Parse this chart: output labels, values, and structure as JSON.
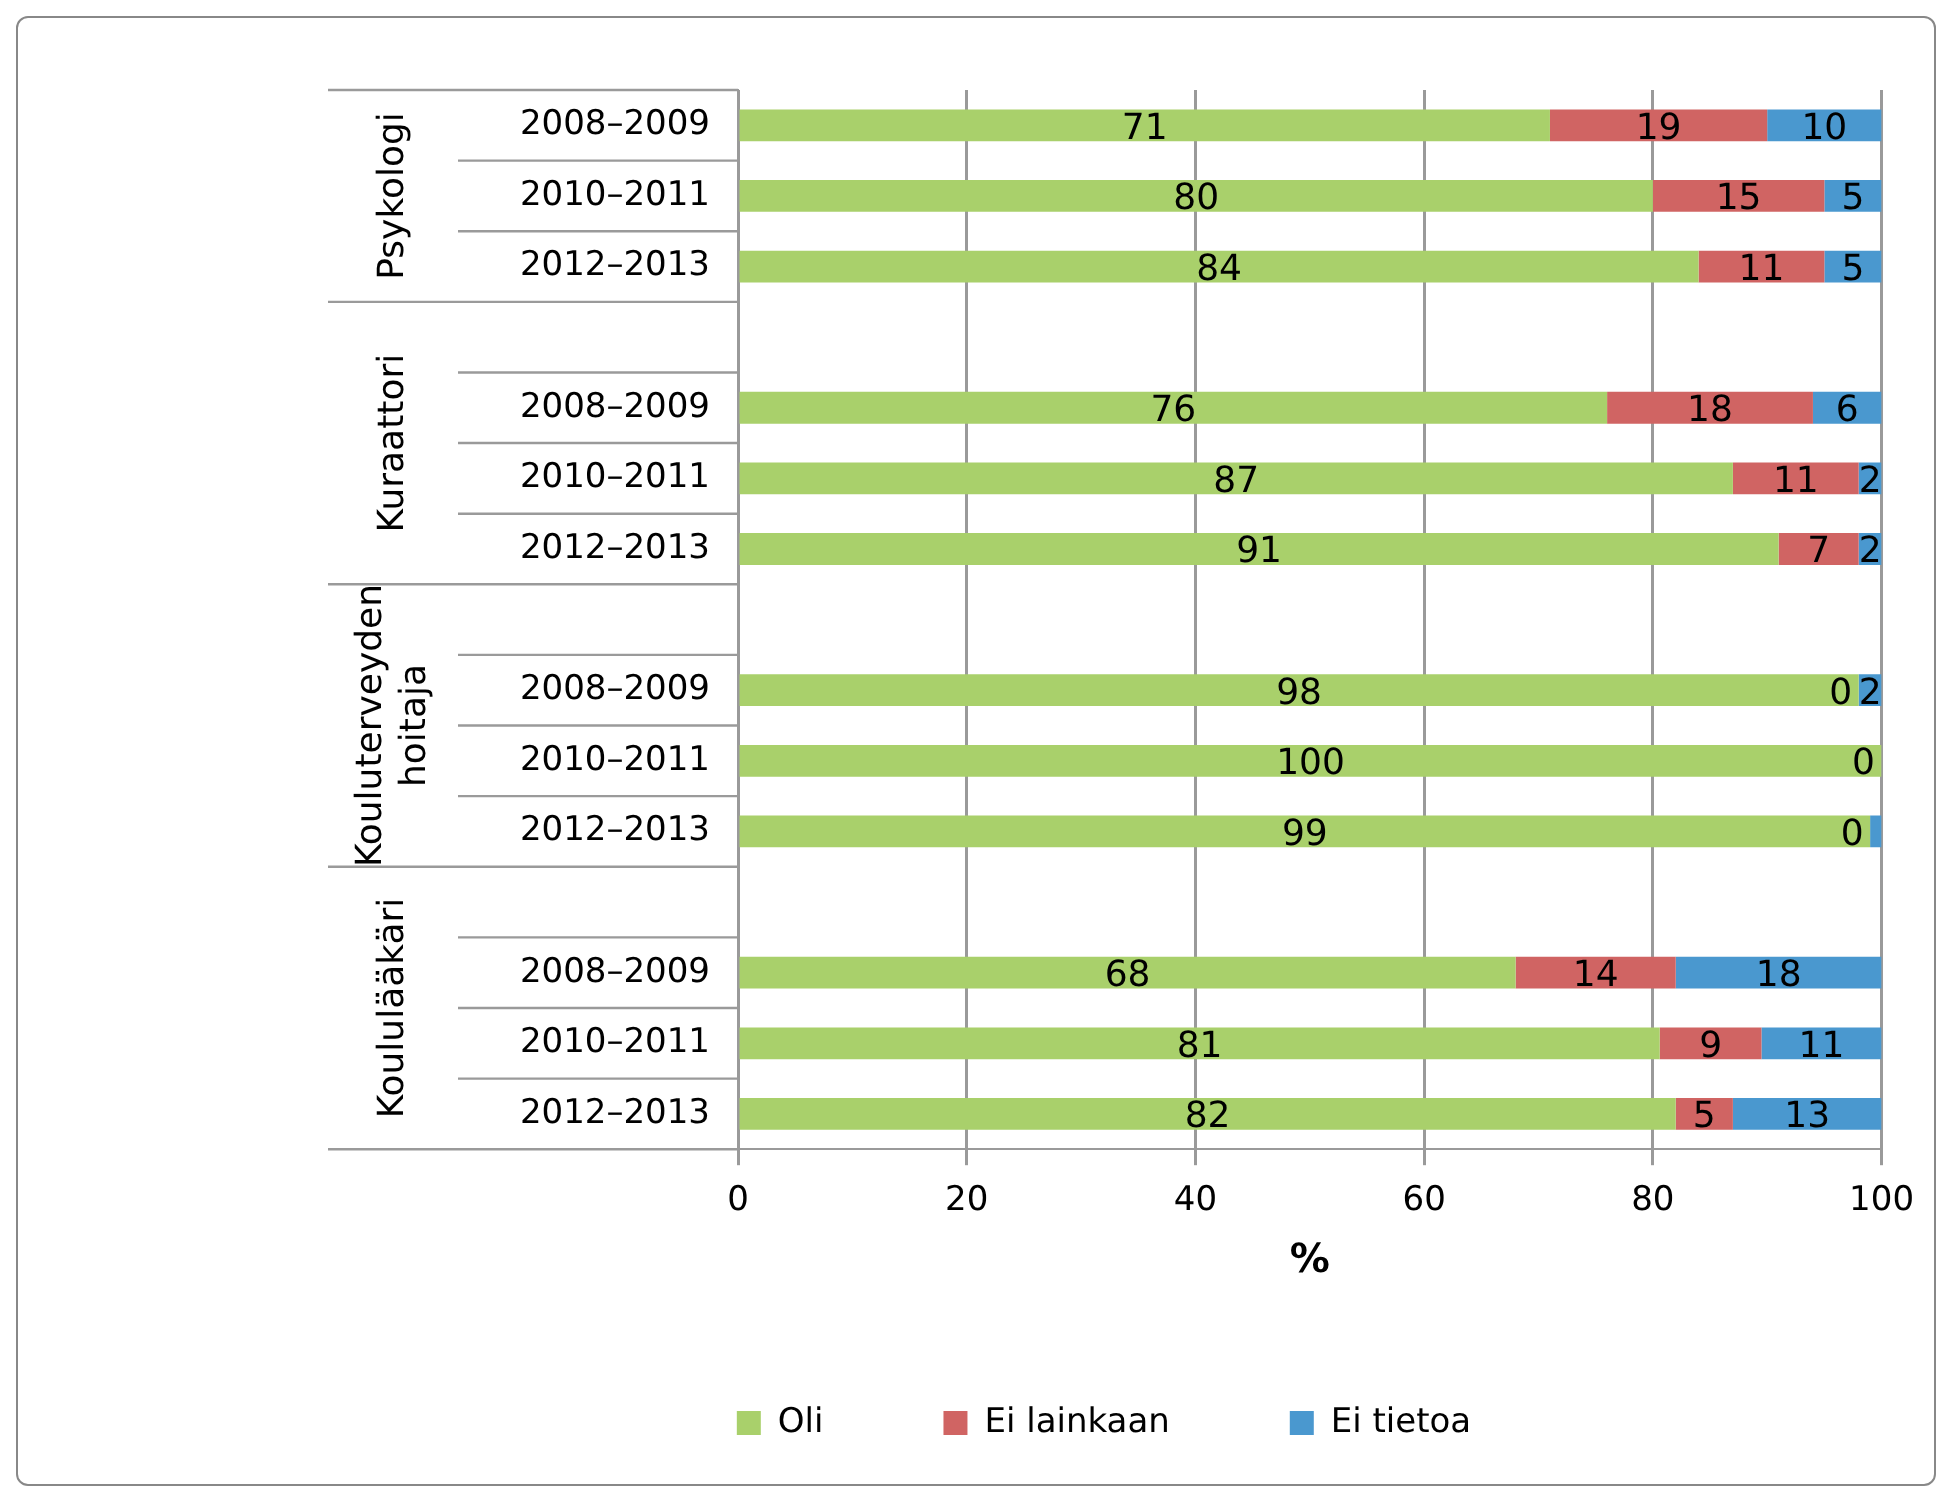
{
  "chart_data": {
    "type": "bar",
    "orientation": "horizontal",
    "stacked": true,
    "xlabel": "%",
    "categories": [
      "2008–2009",
      "2010–2011",
      "2012–2013",
      null,
      "2008–2009",
      "2010–2011",
      "2012–2013",
      null,
      "2008–2009",
      "2010–2011",
      "2012–2013",
      null,
      "2008–2009",
      "2010–2011",
      "2012–2013"
    ],
    "annotations": [
      "Psykologi",
      "Kuraattori",
      "Kouluterveyden hoitaja",
      "Koululääkäri"
    ],
    "series": [
      {
        "name": "Oli",
        "color": "#a9d06b",
        "values": [
          71,
          80,
          84,
          null,
          76,
          87,
          91,
          null,
          98,
          100,
          99,
          null,
          68,
          80.6,
          82
        ],
        "value_labels": [
          "71",
          "80",
          "84",
          null,
          "76",
          "87",
          "91",
          null,
          "98",
          "100",
          "99",
          null,
          "68",
          "81",
          "82"
        ]
      },
      {
        "name": "Ei lainkaan",
        "color": "#d06463",
        "values": [
          19,
          15,
          11,
          null,
          18,
          11,
          7,
          null,
          0,
          0,
          0,
          null,
          14,
          8.9,
          5
        ],
        "value_labels": [
          "19",
          "15",
          "11",
          null,
          "18",
          "11",
          "7",
          null,
          "0",
          "0",
          "0",
          null,
          "14",
          "9",
          "5"
        ]
      },
      {
        "name": "Ei tietoa",
        "color": "#4a98cf",
        "values": [
          10,
          5,
          5,
          null,
          6,
          2,
          2,
          null,
          2,
          0,
          1,
          null,
          18,
          10.5,
          13
        ],
        "value_labels": [
          "10",
          "5",
          "5",
          null,
          "6",
          "2",
          "2",
          null,
          "2",
          null,
          null,
          null,
          "18",
          "11",
          "13"
        ]
      }
    ],
    "xlim": [
      0,
      100
    ],
    "xticks": [
      0,
      20,
      40,
      60,
      80,
      100
    ],
    "grid": "x",
    "legend": "bottom"
  }
}
